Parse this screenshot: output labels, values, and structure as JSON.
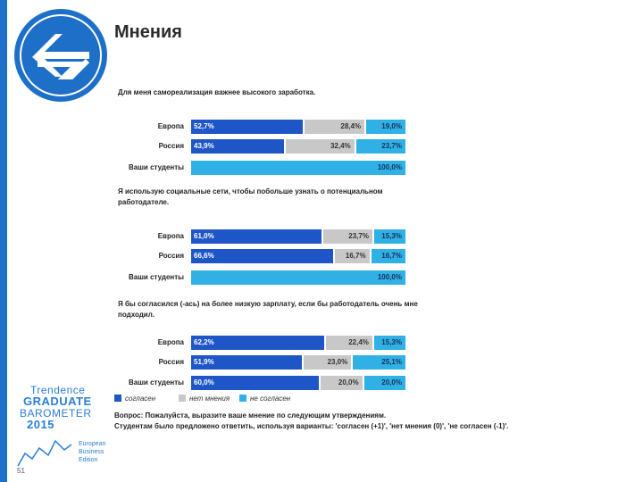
{
  "page": {
    "title": "Мнения",
    "page_number": "51"
  },
  "logo_icon": "arrows-logo-icon",
  "barometer_logo": {
    "lines": [
      "Trendence",
      "GRADUATE",
      "BAROMETER",
      "2015"
    ],
    "small": [
      "European",
      "Business",
      "Edition"
    ]
  },
  "colors": {
    "agree": "#1e56c8",
    "neutral": "#c8c8c8",
    "disagree": "#2fb1e6",
    "accent": "#1e6fc8"
  },
  "legend": [
    {
      "label": "согласен",
      "color": "#1e56c8"
    },
    {
      "label": "нет мнения",
      "color": "#c8c8c8"
    },
    {
      "label": "не согласен",
      "color": "#2fb1e6"
    }
  ],
  "footnote": [
    "Вопрос: Пожалуйста, выразите ваше мнение по следующим утверждениям.",
    "Студентам было предложено ответить, используя варианты: 'согласен (+1)', 'нет мнения (0)', 'не согласен (-1)'."
  ],
  "chart_data": [
    {
      "type": "bar",
      "stacked": true,
      "orientation": "horizontal",
      "title": "Для меня самореализация важнее высокого заработка.",
      "categories": [
        "Европа",
        "Россия",
        "Ваши студенты"
      ],
      "series": [
        {
          "name": "согласен",
          "values": [
            52.7,
            43.9,
            0
          ],
          "labels": [
            "52,7%",
            "43,9%",
            ""
          ]
        },
        {
          "name": "нет мнения",
          "values": [
            28.4,
            32.4,
            0
          ],
          "labels": [
            "28,4%",
            "32,4%",
            ""
          ]
        },
        {
          "name": "не согласен",
          "values": [
            19.0,
            23.7,
            100.0
          ],
          "labels": [
            "19,0%",
            "23,7%",
            "100,0%"
          ]
        }
      ],
      "xlim": [
        0,
        100
      ]
    },
    {
      "type": "bar",
      "stacked": true,
      "orientation": "horizontal",
      "title": "Я использую социальные сети, чтобы побольше узнать о потенциальном работодателе.",
      "categories": [
        "Европа",
        "Россия",
        "Ваши студенты"
      ],
      "series": [
        {
          "name": "согласен",
          "values": [
            61.0,
            66.6,
            0
          ],
          "labels": [
            "61,0%",
            "66,6%",
            ""
          ]
        },
        {
          "name": "нет мнения",
          "values": [
            23.7,
            16.7,
            0
          ],
          "labels": [
            "23,7%",
            "16,7%",
            ""
          ]
        },
        {
          "name": "не согласен",
          "values": [
            15.3,
            16.7,
            100.0
          ],
          "labels": [
            "15,3%",
            "16,7%",
            "100,0%"
          ]
        }
      ],
      "xlim": [
        0,
        100
      ]
    },
    {
      "type": "bar",
      "stacked": true,
      "orientation": "horizontal",
      "title": "Я бы согласился (-ась) на более низкую зарплату, если бы работодатель очень мне подходил.",
      "categories": [
        "Европа",
        "Россия",
        "Ваши студенты"
      ],
      "series": [
        {
          "name": "согласен",
          "values": [
            62.2,
            51.9,
            60.0
          ],
          "labels": [
            "62,2%",
            "51,9%",
            "60,0%"
          ]
        },
        {
          "name": "нет мнения",
          "values": [
            22.4,
            23.0,
            20.0
          ],
          "labels": [
            "22,4%",
            "23,0%",
            "20,0%"
          ]
        },
        {
          "name": "не согласен",
          "values": [
            15.3,
            25.1,
            20.0
          ],
          "labels": [
            "15,3%",
            "25,1%",
            "20,0%"
          ]
        }
      ],
      "xlim": [
        0,
        100
      ]
    }
  ]
}
